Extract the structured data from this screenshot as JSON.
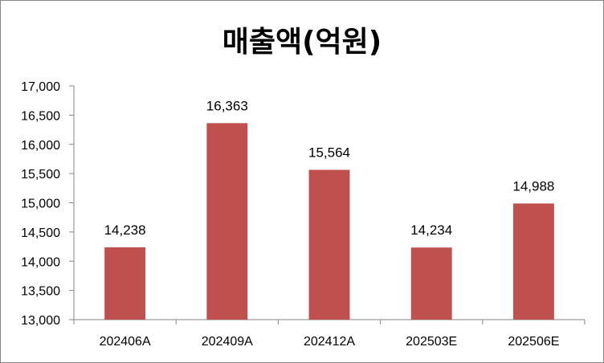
{
  "chart_data": {
    "type": "bar",
    "title": "매출액(억원)",
    "categories": [
      "202406A",
      "202409A",
      "202412A",
      "202503E",
      "202506E"
    ],
    "values": [
      14238,
      16363,
      15564,
      14234,
      14988
    ],
    "data_labels": [
      "14,238",
      "16,363",
      "15,564",
      "14,234",
      "14,988"
    ],
    "ylim": [
      13000,
      17000
    ],
    "yticks": [
      "13,000",
      "13,500",
      "14,000",
      "14,500",
      "15,000",
      "15,500",
      "16,000",
      "16,500",
      "17,000"
    ],
    "ytick_values": [
      13000,
      13500,
      14000,
      14500,
      15000,
      15500,
      16000,
      16500,
      17000
    ],
    "bar_color": "#c0504d",
    "grid": false,
    "legend": "none"
  }
}
